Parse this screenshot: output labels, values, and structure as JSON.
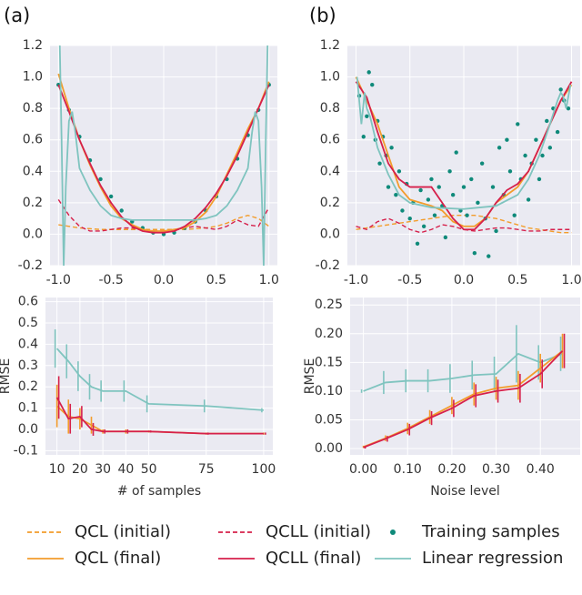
{
  "panel_labels": [
    "(a)",
    "(b)"
  ],
  "chart_data": [
    {
      "type": "line",
      "grid": true,
      "x": [
        -1,
        -0.9,
        -0.8,
        -0.7,
        -0.6,
        -0.5,
        -0.4,
        -0.3,
        -0.2,
        -0.1,
        0,
        0.1,
        0.2,
        0.3,
        0.4,
        0.5,
        0.6,
        0.7,
        0.8,
        0.9,
        1
      ],
      "xlim": [
        -1.08,
        1.08
      ],
      "xticks": [
        {
          "value": -1,
          "label": "-1.0"
        },
        -0.5,
        {
          "value": 0,
          "label": "0.0"
        },
        0.5,
        {
          "value": 1,
          "label": "1.0"
        }
      ],
      "ylim": [
        -0.2,
        1.2
      ],
      "yticks": [
        -0.2,
        {
          "value": 0,
          "label": "0.0"
        },
        0.2,
        0.4,
        0.6,
        0.8,
        {
          "value": 1,
          "label": "1.0"
        },
        1.2
      ],
      "series": [
        {
          "name": "QCL (initial)",
          "color": "#f39c2b",
          "style": "dashed",
          "values": [
            0.06,
            0.05,
            0.04,
            0.035,
            0.03,
            0.03,
            0.03,
            0.03,
            0.03,
            0.03,
            0.03,
            0.03,
            0.03,
            0.035,
            0.04,
            0.05,
            0.07,
            0.1,
            0.12,
            0.1,
            0.05
          ]
        },
        {
          "name": "QCLL (initial)",
          "color": "#d6204b",
          "style": "dashed",
          "values": [
            0.22,
            0.12,
            0.05,
            0.02,
            0.02,
            0.03,
            0.04,
            0.04,
            0.03,
            0.02,
            0.02,
            0.03,
            0.04,
            0.05,
            0.04,
            0.03,
            0.05,
            0.09,
            0.06,
            0.05,
            0.17
          ]
        },
        {
          "name": "Training samples",
          "color": "#0f8a7a",
          "style": "dots",
          "values": [
            0.95,
            0.79,
            0.62,
            0.47,
            0.35,
            0.24,
            0.15,
            0.08,
            0.04,
            0.01,
            0,
            0.01,
            0.04,
            0.08,
            0.15,
            0.24,
            0.35,
            0.48,
            0.63,
            0.79,
            0.95
          ]
        },
        {
          "name": "QCL (final)",
          "color": "#f39c2b",
          "style": "solid",
          "values": [
            1.02,
            0.8,
            0.6,
            0.44,
            0.3,
            0.18,
            0.1,
            0.06,
            0.03,
            0.02,
            0.02,
            0.03,
            0.04,
            0.08,
            0.14,
            0.24,
            0.38,
            0.52,
            0.67,
            0.8,
            0.97
          ]
        },
        {
          "name": "QCLL (final)",
          "color": "#d6204b",
          "style": "solid",
          "values": [
            0.95,
            0.78,
            0.6,
            0.45,
            0.31,
            0.2,
            0.11,
            0.05,
            0.02,
            0.01,
            0.01,
            0.02,
            0.05,
            0.1,
            0.17,
            0.26,
            0.37,
            0.5,
            0.65,
            0.8,
            0.95
          ]
        },
        {
          "name": "Linear regression",
          "color": "#7fc4bf",
          "style": "solid",
          "x": [
            -0.99,
            -0.97,
            -0.95,
            -0.93,
            -0.9,
            -0.87,
            -0.84,
            -0.8,
            -0.7,
            -0.6,
            -0.5,
            -0.4,
            -0.3,
            0,
            0.3,
            0.4,
            0.5,
            0.6,
            0.7,
            0.8,
            0.84,
            0.87,
            0.9,
            0.93,
            0.95,
            0.97,
            0.99
          ],
          "values": [
            1.3,
            0.6,
            -0.2,
            0.3,
            0.72,
            0.78,
            0.65,
            0.42,
            0.28,
            0.18,
            0.12,
            0.1,
            0.09,
            0.09,
            0.09,
            0.1,
            0.12,
            0.18,
            0.28,
            0.42,
            0.65,
            0.78,
            0.72,
            0.3,
            -0.2,
            0.6,
            1.3
          ]
        }
      ]
    },
    {
      "type": "line",
      "grid": true,
      "x": [
        -1,
        -0.9,
        -0.8,
        -0.7,
        -0.6,
        -0.5,
        -0.4,
        -0.3,
        -0.2,
        -0.1,
        0,
        0.1,
        0.2,
        0.3,
        0.4,
        0.5,
        0.6,
        0.7,
        0.8,
        0.9,
        1
      ],
      "xlim": [
        -1.08,
        1.08
      ],
      "xticks": [
        {
          "value": -1,
          "label": "-1.0"
        },
        -0.5,
        {
          "value": 0,
          "label": "0.0"
        },
        0.5,
        {
          "value": 1,
          "label": "1.0"
        }
      ],
      "ylim": [
        -0.2,
        1.2
      ],
      "yticks": [
        -0.2,
        {
          "value": 0,
          "label": "0.0"
        },
        0.2,
        0.4,
        0.6,
        0.8,
        {
          "value": 1,
          "label": "1.0"
        },
        1.2
      ],
      "series": [
        {
          "color": "#f39c2b",
          "style": "dashed",
          "values": [
            0.03,
            0.04,
            0.05,
            0.06,
            0.07,
            0.08,
            0.09,
            0.1,
            0.11,
            0.12,
            0.12,
            0.12,
            0.11,
            0.1,
            0.08,
            0.06,
            0.04,
            0.03,
            0.02,
            0.01,
            0.01
          ]
        },
        {
          "color": "#d6204b",
          "style": "dashed",
          "values": [
            0.05,
            0.03,
            0.08,
            0.1,
            0.07,
            0.03,
            0.01,
            0.03,
            0.06,
            0.05,
            0.03,
            0.02,
            0.03,
            0.04,
            0.04,
            0.03,
            0.02,
            0.02,
            0.03,
            0.03,
            0.03
          ]
        },
        {
          "color": "#0f8a7a",
          "style": "dots",
          "x": [
            -0.97,
            -0.93,
            -0.9,
            -0.88,
            -0.85,
            -0.82,
            -0.8,
            -0.78,
            -0.75,
            -0.72,
            -0.7,
            -0.67,
            -0.63,
            -0.6,
            -0.57,
            -0.53,
            -0.5,
            -0.47,
            -0.43,
            -0.4,
            -0.37,
            -0.33,
            -0.3,
            -0.27,
            -0.23,
            -0.2,
            -0.17,
            -0.13,
            -0.1,
            -0.07,
            -0.03,
            0,
            0.03,
            0.07,
            0.1,
            0.13,
            0.17,
            0.2,
            0.23,
            0.27,
            0.3,
            0.33,
            0.37,
            0.4,
            0.43,
            0.47,
            0.5,
            0.53,
            0.57,
            0.6,
            0.63,
            0.67,
            0.7,
            0.73,
            0.77,
            0.8,
            0.83,
            0.87,
            0.9,
            0.93,
            0.97
          ],
          "values": [
            0.88,
            0.62,
            0.75,
            1.03,
            0.95,
            0.6,
            0.72,
            0.45,
            0.62,
            0.5,
            0.3,
            0.55,
            0.25,
            0.4,
            0.15,
            0.32,
            0.1,
            0.2,
            -0.06,
            0.28,
            0.05,
            0.22,
            0.35,
            0.12,
            0.3,
            0.18,
            -0.02,
            0.4,
            0.25,
            0.52,
            0.15,
            0.3,
            0.12,
            0.35,
            -0.12,
            0.2,
            0.45,
            0.1,
            -0.14,
            0.3,
            0.02,
            0.55,
            0.25,
            0.6,
            0.4,
            0.12,
            0.7,
            0.35,
            0.5,
            0.22,
            0.45,
            0.6,
            0.35,
            0.5,
            0.72,
            0.55,
            0.8,
            0.65,
            0.92,
            0.85,
            0.8
          ]
        },
        {
          "color": "#f39c2b",
          "style": "solid",
          "values": [
            1.0,
            0.85,
            0.7,
            0.5,
            0.3,
            0.22,
            0.2,
            0.18,
            0.15,
            0.08,
            0.05,
            0.05,
            0.1,
            0.2,
            0.25,
            0.3,
            0.4,
            0.55,
            0.7,
            0.85,
            0.95
          ]
        },
        {
          "color": "#d6204b",
          "style": "solid",
          "values": [
            0.97,
            0.87,
            0.65,
            0.45,
            0.35,
            0.3,
            0.3,
            0.3,
            0.2,
            0.1,
            0.03,
            0.03,
            0.1,
            0.2,
            0.28,
            0.32,
            0.4,
            0.55,
            0.7,
            0.85,
            0.97
          ]
        },
        {
          "color": "#7fc4bf",
          "style": "solid",
          "x": [
            -0.99,
            -0.95,
            -0.92,
            -0.9,
            -0.87,
            -0.8,
            -0.7,
            -0.6,
            -0.5,
            -0.3,
            0,
            0.3,
            0.5,
            0.6,
            0.7,
            0.8,
            0.87,
            0.9,
            0.92,
            0.95,
            0.99
          ],
          "values": [
            1.0,
            0.7,
            0.9,
            0.8,
            0.75,
            0.55,
            0.38,
            0.25,
            0.2,
            0.17,
            0.16,
            0.18,
            0.25,
            0.35,
            0.5,
            0.7,
            0.85,
            0.9,
            0.88,
            0.8,
            0.95
          ]
        }
      ]
    },
    {
      "type": "errorbar",
      "grid": true,
      "x_label": "# of samples",
      "y_label": "RMSE",
      "x": [
        10,
        15,
        20,
        25,
        30,
        40,
        50,
        75,
        100
      ],
      "xlim": [
        5,
        104
      ],
      "xticks": [
        10,
        20,
        30,
        40,
        50,
        75,
        100
      ],
      "ylim": [
        -0.12,
        0.62
      ],
      "yticks": [
        -0.1,
        {
          "value": 0,
          "label": "0.0"
        },
        0.1,
        0.2,
        0.3,
        0.4,
        0.5,
        0.6
      ],
      "series": [
        {
          "color": "#7fc4bf",
          "values": [
            0.38,
            0.32,
            0.25,
            0.2,
            0.18,
            0.18,
            0.12,
            0.11,
            0.09
          ],
          "errors": [
            0.09,
            0.08,
            0.07,
            0.06,
            0.05,
            0.05,
            0.04,
            0.03,
            0.01
          ]
        },
        {
          "color": "#f39c2b",
          "values": [
            0.11,
            0.06,
            0.05,
            0.02,
            -0.01,
            -0.01,
            -0.01,
            -0.02,
            -0.02
          ],
          "errors": [
            0.1,
            0.08,
            0.05,
            0.04,
            0.01,
            0.01,
            0.005,
            0.005,
            0.005
          ]
        },
        {
          "color": "#d6204b",
          "values": [
            0.15,
            0.05,
            0.06,
            0,
            -0.01,
            -0.01,
            -0.01,
            -0.02,
            -0.02
          ],
          "errors": [
            0.1,
            0.07,
            0.05,
            0.03,
            0.01,
            0.01,
            0.005,
            0.005,
            0.005
          ]
        }
      ]
    },
    {
      "type": "errorbar",
      "grid": true,
      "x_label": "Noise level",
      "y_label": "RMSE",
      "x": [
        0,
        0.05,
        0.1,
        0.15,
        0.2,
        0.25,
        0.3,
        0.35,
        0.4,
        0.45
      ],
      "xlim": [
        -0.03,
        0.49
      ],
      "xticks": [
        {
          "value": 0,
          "label": "0.00"
        },
        {
          "value": 0.1,
          "label": "0.10"
        },
        {
          "value": 0.2,
          "label": "0.20"
        },
        {
          "value": 0.3,
          "label": "0.30"
        },
        {
          "value": 0.4,
          "label": "0.40"
        }
      ],
      "ylim": [
        -0.011,
        0.263
      ],
      "yticks": [
        {
          "value": 0,
          "label": "0.00"
        },
        0.05,
        {
          "value": 0.1,
          "label": "0.10"
        },
        0.15,
        {
          "value": 0.2,
          "label": "0.20"
        },
        0.25
      ],
      "series": [
        {
          "color": "#7fc4bf",
          "values": [
            0.1,
            0.115,
            0.118,
            0.118,
            0.122,
            0.128,
            0.13,
            0.165,
            0.15,
            0.165
          ],
          "errors": [
            0.003,
            0.02,
            0.02,
            0.02,
            0.025,
            0.025,
            0.03,
            0.05,
            0.03,
            0.03
          ]
        },
        {
          "color": "#f39c2b",
          "values": [
            0.003,
            0.018,
            0.035,
            0.055,
            0.075,
            0.095,
            0.105,
            0.11,
            0.14,
            0.17
          ],
          "errors": [
            0.002,
            0.005,
            0.01,
            0.012,
            0.015,
            0.02,
            0.02,
            0.025,
            0.025,
            0.03
          ]
        },
        {
          "color": "#d6204b",
          "values": [
            0.002,
            0.017,
            0.033,
            0.053,
            0.07,
            0.092,
            0.1,
            0.105,
            0.13,
            0.17
          ],
          "errors": [
            0.002,
            0.005,
            0.01,
            0.012,
            0.015,
            0.02,
            0.02,
            0.025,
            0.025,
            0.03
          ]
        }
      ]
    }
  ]
}
